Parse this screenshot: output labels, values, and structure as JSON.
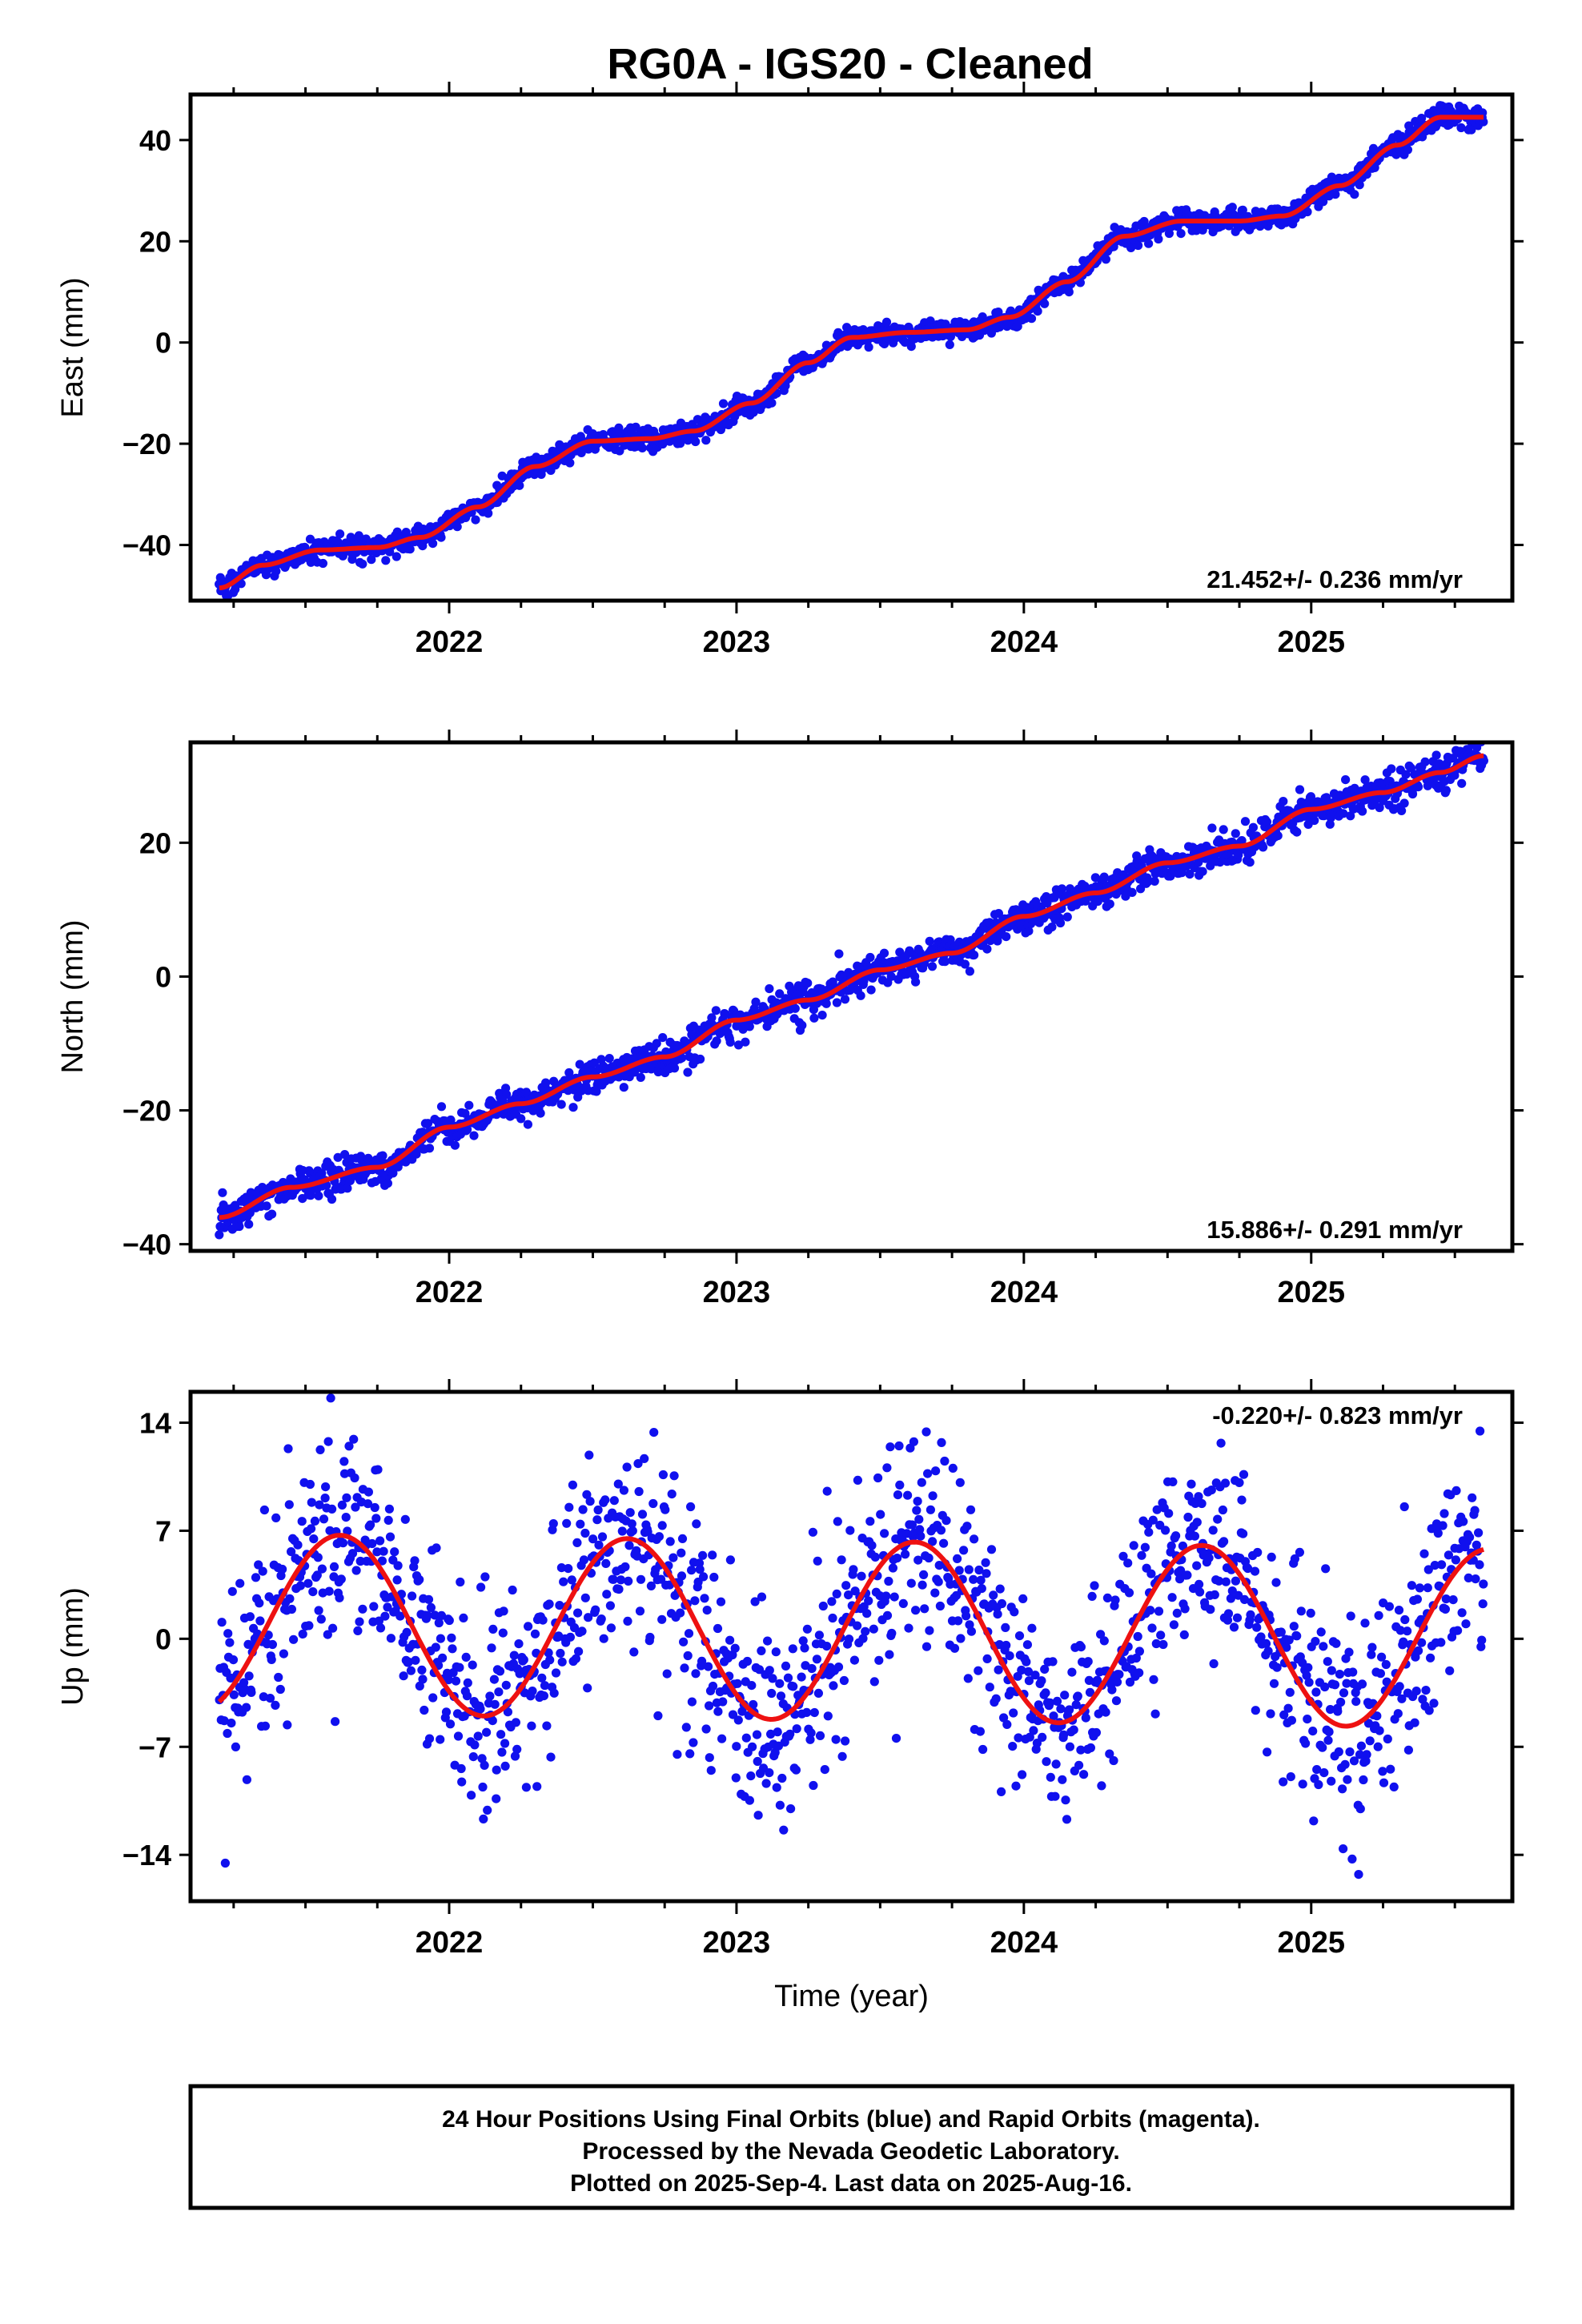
{
  "title": "RG0A  - IGS20 - Cleaned",
  "colors": {
    "points": "#1010ee",
    "fit": "#ee1111",
    "frame": "#000000"
  },
  "chart_data": [
    {
      "type": "scatter",
      "component": "east",
      "ylabel": "East (mm)",
      "xlabel": "",
      "xlim": [
        2021.1,
        2025.7
      ],
      "ylim": [
        -51,
        49
      ],
      "yticks": [
        -40,
        -20,
        0,
        20,
        40
      ],
      "xticks": [
        2022,
        2023,
        2024,
        2025
      ],
      "rate_label": "21.452+/- 0.236 mm/yr",
      "rate_position": "bottom-right",
      "fit": {
        "x": [
          2021.2,
          2021.35,
          2021.55,
          2021.75,
          2021.9,
          2022.1,
          2022.3,
          2022.5,
          2022.7,
          2022.85,
          2023.05,
          2023.25,
          2023.4,
          2023.6,
          2023.8,
          2023.95,
          2024.15,
          2024.35,
          2024.55,
          2024.75,
          2024.9,
          2025.1,
          2025.3,
          2025.45,
          2025.6
        ],
        "y": [
          -48.5,
          -44,
          -41,
          -40.5,
          -38.5,
          -32.5,
          -24.5,
          -19.5,
          -19,
          -17.5,
          -12,
          -4,
          1,
          2,
          2.5,
          5,
          12,
          21,
          24,
          24,
          25,
          31,
          39,
          44.5,
          44.5
        ]
      },
      "points": {
        "count": 1450,
        "scatter_sd_mm": 1.1
      }
    },
    {
      "type": "scatter",
      "component": "north",
      "ylabel": "North (mm)",
      "xlabel": "",
      "xlim": [
        2021.1,
        2025.7
      ],
      "ylim": [
        -41,
        35
      ],
      "yticks": [
        -40,
        -20,
        0,
        20
      ],
      "xticks": [
        2022,
        2023,
        2024,
        2025
      ],
      "rate_label": "15.886+/- 0.291 mm/yr",
      "rate_position": "bottom-right",
      "fit": {
        "x": [
          2021.2,
          2021.45,
          2021.75,
          2022.0,
          2022.25,
          2022.5,
          2022.75,
          2023.0,
          2023.25,
          2023.5,
          2023.75,
          2024.0,
          2024.25,
          2024.5,
          2024.75,
          2025.0,
          2025.25,
          2025.45,
          2025.6
        ],
        "y": [
          -36,
          -31.5,
          -28.5,
          -22.5,
          -19,
          -15,
          -12,
          -6.5,
          -3.5,
          1,
          3.5,
          9,
          12.5,
          17,
          19.5,
          25,
          27.5,
          30.5,
          33
        ]
      },
      "points": {
        "count": 1450,
        "scatter_sd_mm": 1.3
      }
    },
    {
      "type": "scatter",
      "component": "up",
      "ylabel": "Up (mm)",
      "xlabel": "Time (year)",
      "xlim": [
        2021.1,
        2025.7
      ],
      "ylim": [
        -17,
        16
      ],
      "yticks": [
        -14,
        -7,
        0,
        7,
        14
      ],
      "xticks": [
        2022,
        2023,
        2024,
        2025
      ],
      "rate_label": "-0.220+/- 0.823 mm/yr",
      "rate_position": "top-right",
      "fit": {
        "model": "annual",
        "mean_mm": 1.0,
        "amplitude_mm": 5.8,
        "peak_phase_year": 0.62,
        "x_start": 2021.2,
        "x_end": 2025.6,
        "trend_mm_per_yr": -0.22
      },
      "points": {
        "count": 1450,
        "scatter_sd_mm": 3.3
      }
    }
  ],
  "footer": {
    "lines": [
      "24 Hour Positions Using Final Orbits (blue) and Rapid Orbits (magenta).",
      "Processed by the Nevada Geodetic Laboratory.",
      "Plotted on 2025-Sep-4. Last data on 2025-Aug-16."
    ]
  }
}
